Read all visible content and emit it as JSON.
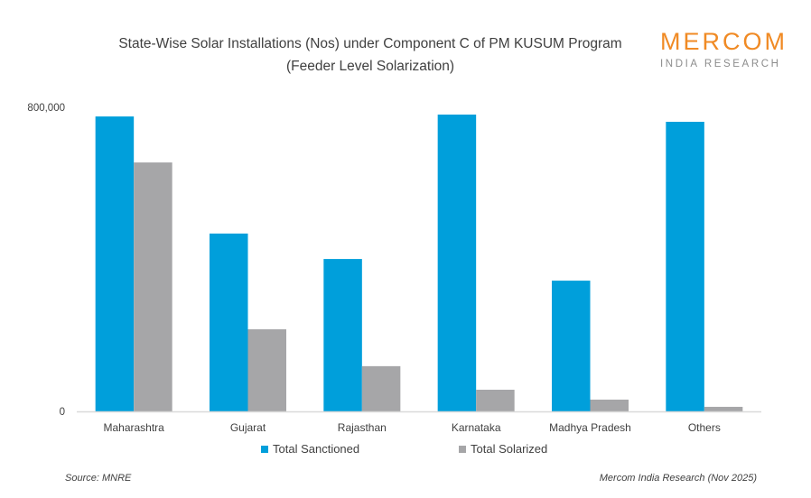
{
  "logo": {
    "name": "MERCOM",
    "sub": "INDIA RESEARCH"
  },
  "footer": {
    "source": "Source: MNRE",
    "credit": "Mercom India Research (Nov 2025)"
  },
  "colors": {
    "sanctioned": "#009fdb",
    "solarized": "#a6a6a8",
    "brand": "#f08a24"
  },
  "chart_data": {
    "type": "bar",
    "title": "State-Wise Solar Installations (Nos) under Component C of PM KUSUM Program",
    "subtitle": "(Feeder Level Solarization)",
    "categories": [
      "Maharashtra",
      "Gujarat",
      "Rajasthan",
      "Karnataka",
      "Madhya Pradesh",
      "Others"
    ],
    "series": [
      {
        "name": "Total Sanctioned",
        "values": [
          776000,
          468000,
          401000,
          781000,
          344000,
          762000
        ]
      },
      {
        "name": "Total Solarized",
        "values": [
          655000,
          216000,
          119000,
          57000,
          31000,
          12000
        ]
      }
    ],
    "yticks": [
      "0",
      "800,000"
    ],
    "ylim": [
      0,
      800000
    ],
    "grid": false,
    "legend": "bottom"
  }
}
